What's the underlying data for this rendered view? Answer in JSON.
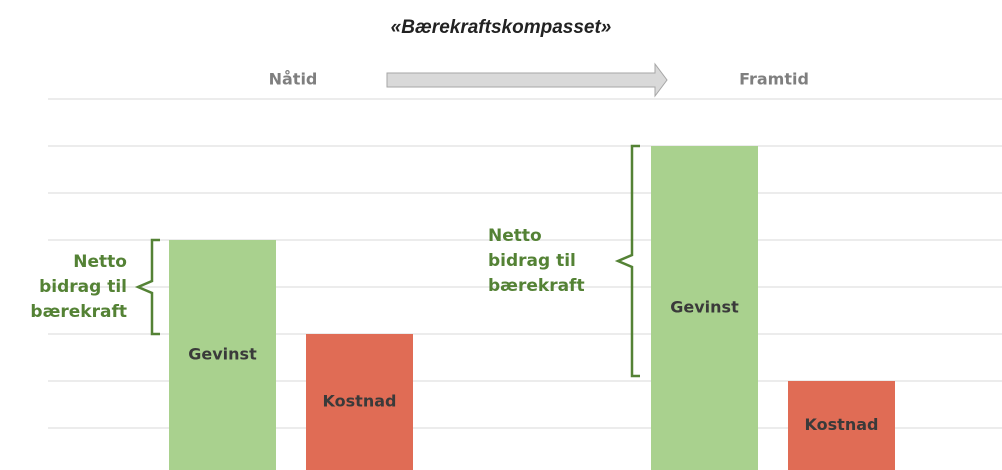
{
  "chart_data": {
    "type": "bar",
    "title": "«Bærekraftskompasset»",
    "categories": [
      "Nåtid",
      "Framtid"
    ],
    "series": [
      {
        "name": "Gevinst",
        "color": "#a9d18e",
        "values": [
          5,
          7
        ]
      },
      {
        "name": "Kostnad",
        "color": "#e06c55",
        "values": [
          3,
          2
        ]
      }
    ],
    "annotation_lines": [
      "Netto",
      "bidrag til",
      "bærekraft"
    ],
    "annotation_color": "#548235",
    "ylim": [
      0,
      8
    ],
    "yticks": [
      1,
      2,
      3,
      4,
      5,
      6,
      7,
      8
    ],
    "grid": true
  }
}
